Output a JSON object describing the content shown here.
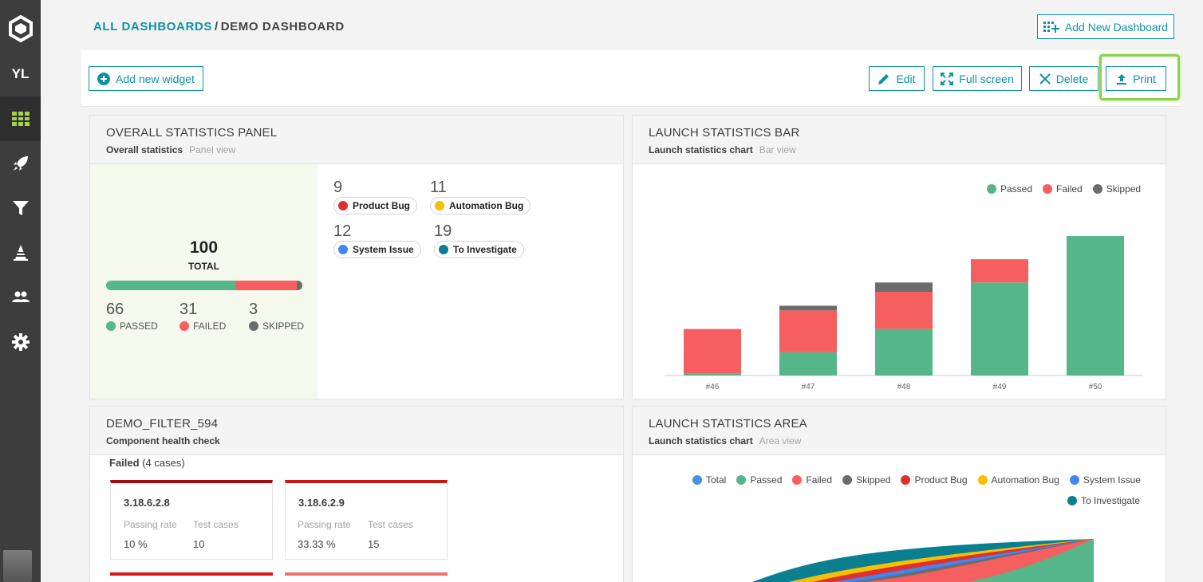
{
  "sidebar": {
    "user_initials": "YL",
    "items": [
      "logo-icon",
      "user-initials",
      "dashboard-icon",
      "rocket-icon",
      "filter-icon",
      "debug-icon",
      "members-icon",
      "settings-icon"
    ]
  },
  "breadcrumb": {
    "root": "ALL DASHBOARDS",
    "separator": "/",
    "current": "DEMO DASHBOARD"
  },
  "header": {
    "add_dashboard_label": "Add New Dashboard"
  },
  "toolbar": {
    "add_widget_label": "Add new widget",
    "edit_label": "Edit",
    "fullscreen_label": "Full screen",
    "delete_label": "Delete",
    "print_label": "Print"
  },
  "colors": {
    "accent": "#0f91a5",
    "passed": "#55b68a",
    "failed": "#f55f5f",
    "skipped": "#6c6c6c",
    "product_bug": "#e12e2e",
    "automation_bug": "#f7c000",
    "system_issue": "#4285f4",
    "to_investigate": "#0a7f8f",
    "total": "#4a90e2",
    "highlight": "#8bd04e"
  },
  "overall_widget": {
    "title": "OVERALL STATISTICS PANEL",
    "subtitle": "Overall statistics",
    "view": "Panel view",
    "total_value": "100",
    "total_label": "TOTAL",
    "passed_value": "66",
    "passed_label": "PASSED",
    "failed_value": "31",
    "failed_label": "FAILED",
    "skipped_value": "3",
    "skipped_label": "SKIPPED",
    "passed_share": 0.66,
    "failed_share": 0.31,
    "skipped_share": 0.03,
    "defects": [
      {
        "value": "9",
        "label": "Product Bug"
      },
      {
        "value": "11",
        "label": "Automation Bug"
      },
      {
        "value": "12",
        "label": "System Issue"
      },
      {
        "value": "19",
        "label": "To Investigate"
      }
    ]
  },
  "bar_widget": {
    "title": "LAUNCH STATISTICS BAR",
    "subtitle": "Launch statistics chart",
    "view": "Bar view",
    "legend": [
      "Passed",
      "Failed",
      "Skipped"
    ]
  },
  "chart_data": {
    "type": "bar",
    "stacked": true,
    "categories": [
      "#46",
      "#47",
      "#48",
      "#49",
      "#50"
    ],
    "series": [
      {
        "name": "Passed",
        "values": [
          1,
          10,
          20,
          40,
          60
        ]
      },
      {
        "name": "Failed",
        "values": [
          19,
          18,
          16,
          10,
          0
        ]
      },
      {
        "name": "Skipped",
        "values": [
          0,
          2,
          4,
          0,
          0
        ]
      }
    ],
    "ylim": [
      0,
      60
    ],
    "legend_position": "top-right",
    "grid": false
  },
  "filter_widget": {
    "title": "DEMO_FILTER_594",
    "subtitle": "Component health check",
    "failed_label": "Failed",
    "failed_count": "(4 cases)",
    "cards": [
      {
        "name": "3.18.6.2.8",
        "rate_label": "Passing rate",
        "rate": "10 %",
        "cases_label": "Test cases",
        "cases": "10"
      },
      {
        "name": "3.18.6.2.9",
        "rate_label": "Passing rate",
        "rate": "33.33 %",
        "cases_label": "Test cases",
        "cases": "15"
      }
    ]
  },
  "area_widget": {
    "title": "LAUNCH STATISTICS AREA",
    "subtitle": "Launch statistics chart",
    "view": "Area view",
    "legend": [
      "Total",
      "Passed",
      "Failed",
      "Skipped",
      "Product Bug",
      "Automation Bug",
      "System Issue",
      "To Investigate"
    ]
  }
}
